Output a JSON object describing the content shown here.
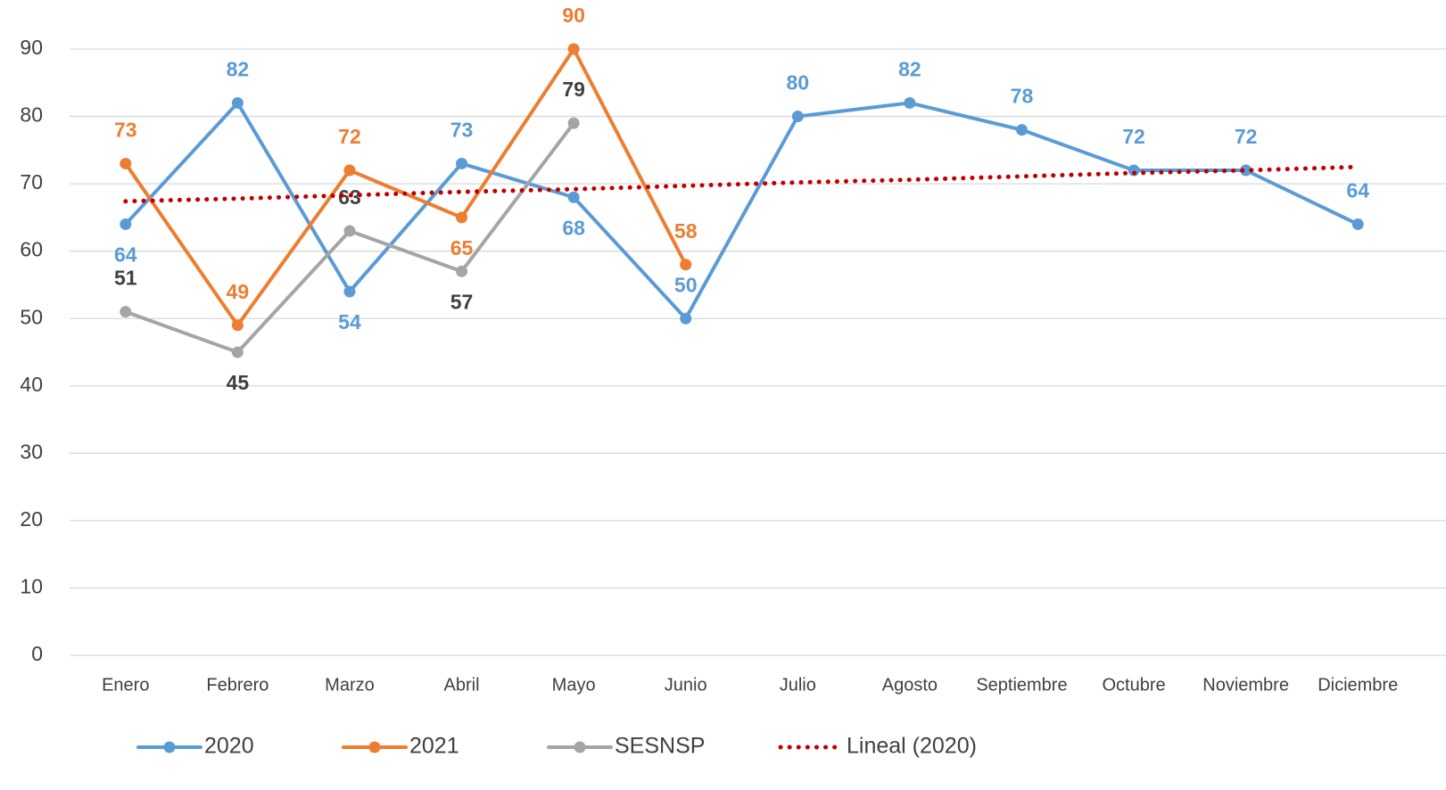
{
  "chart_data": {
    "type": "line",
    "categories": [
      "Enero",
      "Febrero",
      "Marzo",
      "Abril",
      "Mayo",
      "Junio",
      "Julio",
      "Agosto",
      "Septiembre",
      "Octubre",
      "Noviembre",
      "Diciembre"
    ],
    "series": [
      {
        "name": "2020",
        "color": "#5b9bd5",
        "values": [
          64,
          82,
          54,
          73,
          68,
          50,
          80,
          82,
          78,
          72,
          72,
          64
        ]
      },
      {
        "name": "2021",
        "color": "#ed7d31",
        "values": [
          73,
          49,
          72,
          65,
          90,
          58,
          null,
          null,
          null,
          null,
          null,
          null
        ]
      },
      {
        "name": "SESNSP",
        "color": "#a5a5a5",
        "label_color": "#404040",
        "values": [
          51,
          45,
          63,
          57,
          79,
          null,
          null,
          null,
          null,
          null,
          null,
          null
        ]
      },
      {
        "name": "Lineal (2020)",
        "color": "#c00000",
        "dotted": true,
        "values": [
          67.4,
          67.8,
          68.3,
          68.8,
          69.2,
          69.7,
          70.2,
          70.6,
          71.1,
          71.6,
          72.0,
          72.5
        ]
      }
    ],
    "ylim": [
      0,
      90
    ],
    "yticks": [
      0,
      10,
      20,
      30,
      40,
      50,
      60,
      70,
      80,
      90
    ],
    "grid": true,
    "legend": "bottom"
  }
}
